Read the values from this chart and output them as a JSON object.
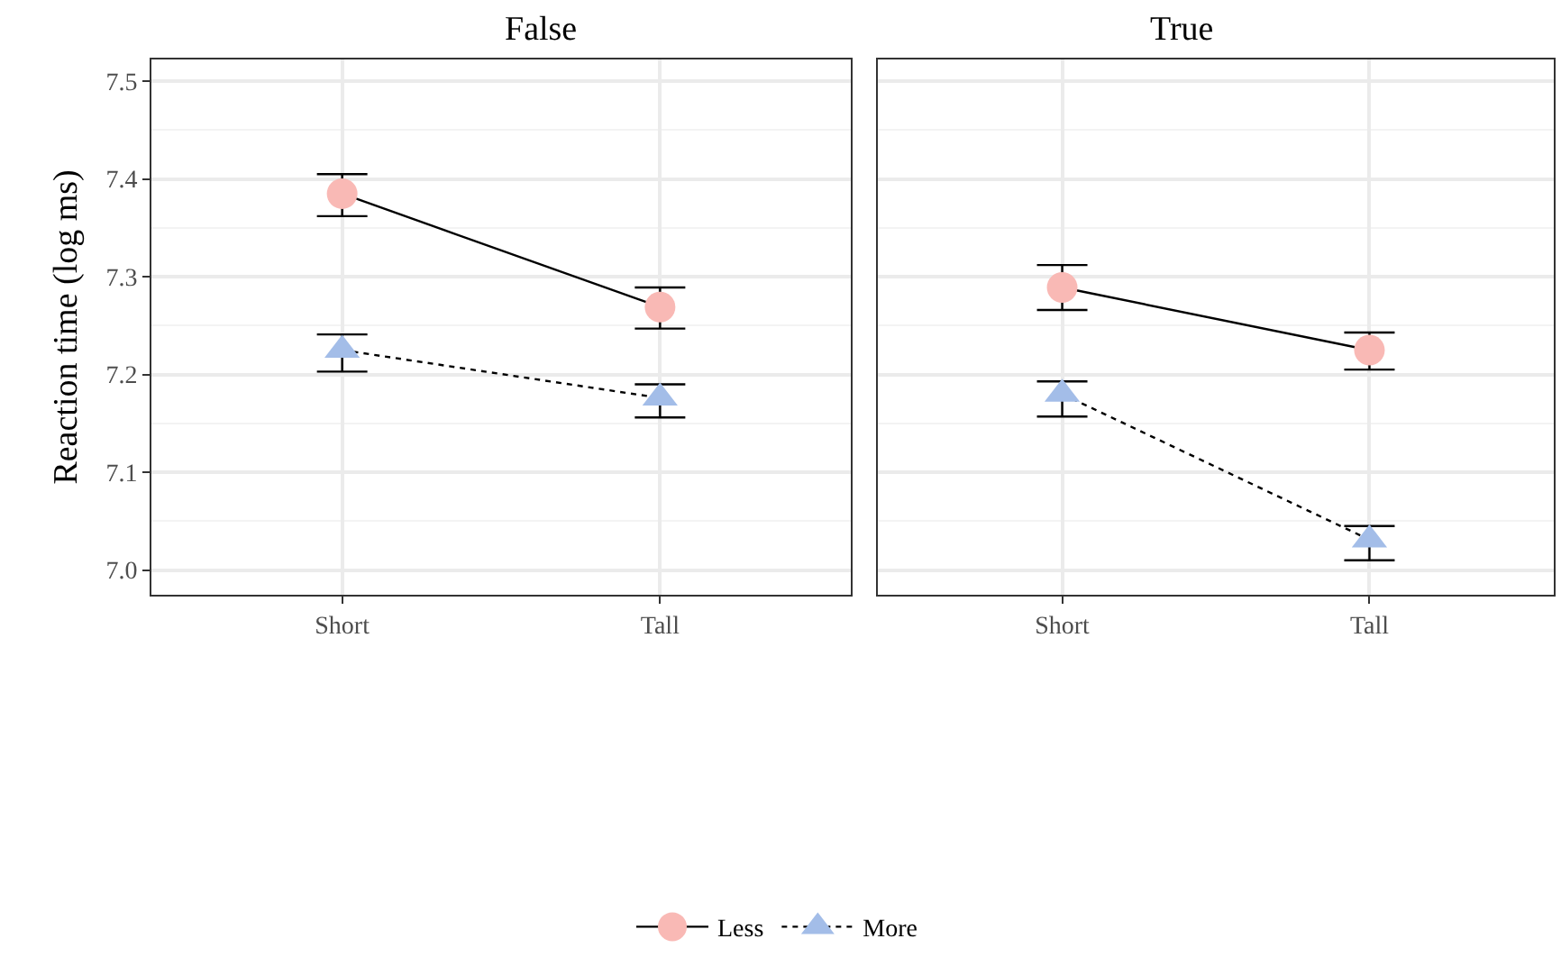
{
  "chart_data": [
    {
      "type": "line",
      "title": "False",
      "ylabel": "Reaction time (log ms)",
      "categories": [
        "Short",
        "Tall"
      ],
      "ylim": [
        6.975,
        7.522
      ],
      "yticks": [
        {
          "value": 7.0,
          "label": "7.0"
        },
        7.1,
        7.2,
        7.3,
        7.4,
        7.5
      ],
      "grid": true,
      "legend": "bottom",
      "series": [
        {
          "name": "Less",
          "color": "#f9b9b5",
          "marker": "circle",
          "line_style": "solid",
          "values": [
            7.385,
            7.269
          ],
          "errors": [
            [
              7.362,
              7.405
            ],
            [
              7.247,
              7.289
            ]
          ]
        },
        {
          "name": "More",
          "color": "#a3bde8",
          "marker": "triangle",
          "line_style": "dotted",
          "values": [
            7.225,
            7.176
          ],
          "errors": [
            [
              7.203,
              7.241
            ],
            [
              7.156,
              7.19
            ]
          ]
        }
      ]
    },
    {
      "type": "line",
      "title": "True",
      "categories": [
        "Short",
        "Tall"
      ],
      "ylim": [
        6.975,
        7.522
      ],
      "yticks": [
        7.0,
        7.1,
        7.2,
        7.3,
        7.4,
        7.5
      ],
      "grid": true,
      "tick_labels": "x",
      "series": [
        {
          "color": "#f9b9b5",
          "marker": "circle",
          "line_style": "solid",
          "values": [
            7.289,
            7.225
          ],
          "errors": [
            [
              7.266,
              7.312
            ],
            [
              7.205,
              7.243
            ]
          ]
        },
        {
          "color": "#a3bde8",
          "marker": "triangle",
          "line_style": "dotted",
          "values": [
            7.18,
            7.031
          ],
          "errors": [
            [
              7.157,
              7.193
            ],
            [
              7.01,
              7.045
            ]
          ]
        }
      ]
    }
  ]
}
